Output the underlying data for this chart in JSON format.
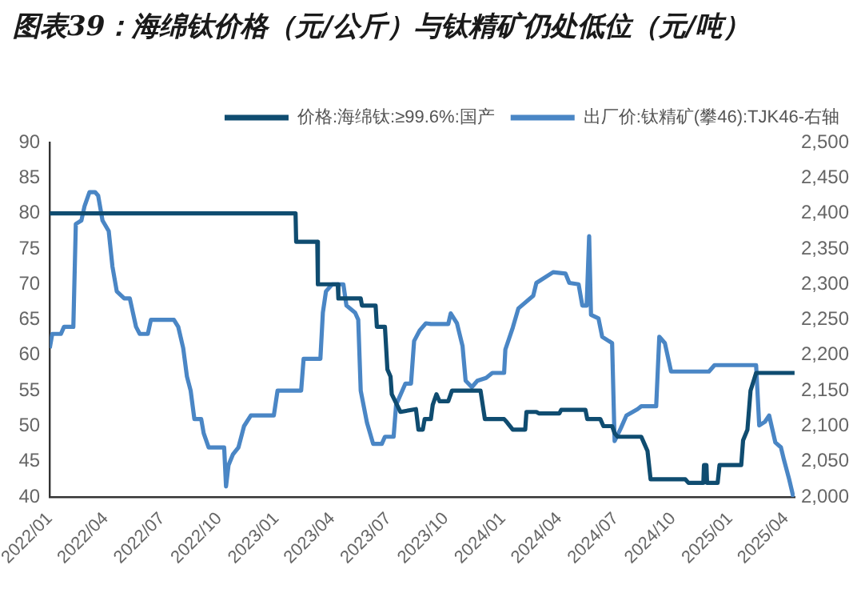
{
  "chart_data": {
    "type": "line",
    "title": "图表39：海绵钛价格（元/公斤）与钛精矿仍处低位（元/吨）",
    "xlim": [
      "2022-01-01",
      "2025-04-15"
    ],
    "xticks": [
      {
        "value": "2022-01-01",
        "label": "2022/01"
      },
      {
        "value": "2022-04-01",
        "label": "2022/04"
      },
      {
        "value": "2022-07-01",
        "label": "2022/07"
      },
      {
        "value": "2022-10-01",
        "label": "2022/10"
      },
      {
        "value": "2023-01-01",
        "label": "2023/01"
      },
      {
        "value": "2023-04-01",
        "label": "2023/04"
      },
      {
        "value": "2023-07-01",
        "label": "2023/07"
      },
      {
        "value": "2023-10-01",
        "label": "2023/10"
      },
      {
        "value": "2024-01-01",
        "label": "2024/01"
      },
      {
        "value": "2024-04-01",
        "label": "2024/04"
      },
      {
        "value": "2024-07-01",
        "label": "2024/07"
      },
      {
        "value": "2024-10-01",
        "label": "2024/10"
      },
      {
        "value": "2025-01-01",
        "label": "2025/01"
      },
      {
        "value": "2025-04-01",
        "label": "2025/04"
      }
    ],
    "ylim": [
      40,
      90
    ],
    "yticks": [
      40,
      45,
      50,
      55,
      60,
      65,
      70,
      75,
      80,
      85,
      90
    ],
    "y2lim": [
      2000,
      2500
    ],
    "y2ticks": [
      {
        "value": 2000,
        "label": "2,000"
      },
      {
        "value": 2050,
        "label": "2,050"
      },
      {
        "value": 2100,
        "label": "2,100"
      },
      {
        "value": 2150,
        "label": "2,150"
      },
      {
        "value": 2200,
        "label": "2,200"
      },
      {
        "value": 2250,
        "label": "2,250"
      },
      {
        "value": 2300,
        "label": "2,300"
      },
      {
        "value": 2350,
        "label": "2,350"
      },
      {
        "value": 2400,
        "label": "2,400"
      },
      {
        "value": 2450,
        "label": "2,450"
      },
      {
        "value": 2500,
        "label": "2,500"
      }
    ],
    "grid": false,
    "legend": "top",
    "marker": "none",
    "line_style": "solid",
    "series": [
      {
        "name": "价格:海绵钛:≥99.6%:国产",
        "color": "#0f4c70",
        "x": [
          "2022-01-01",
          "2023-02-01",
          "2023-02-02",
          "2023-03-08",
          "2023-03-09",
          "2023-04-10",
          "2023-04-11",
          "2023-05-17",
          "2023-05-19",
          "2023-06-10",
          "2023-06-12",
          "2023-06-25",
          "2023-06-29",
          "2023-07-04",
          "2023-07-06",
          "2023-07-20",
          "2023-08-14",
          "2023-08-18",
          "2023-08-25",
          "2023-08-28",
          "2023-09-07",
          "2023-09-10",
          "2023-09-16",
          "2023-09-21",
          "2023-10-05",
          "2023-10-11",
          "2023-11-26",
          "2023-12-03",
          "2024-01-03",
          "2024-01-08",
          "2024-01-17",
          "2024-02-06",
          "2024-02-08",
          "2024-02-24",
          "2024-02-28",
          "2024-04-01",
          "2024-04-04",
          "2024-05-13",
          "2024-05-16",
          "2024-06-06",
          "2024-06-11",
          "2024-06-25",
          "2024-06-29",
          "2024-07-04",
          "2024-08-11",
          "2024-08-16",
          "2024-08-21",
          "2024-08-26",
          "2024-10-21",
          "2024-10-26",
          "2024-11-19",
          "2024-11-20",
          "2024-11-24",
          "2024-11-25",
          "2024-12-12",
          "2024-12-15",
          "2025-01-19",
          "2025-01-22",
          "2025-01-29",
          "2025-02-03",
          "2025-02-12",
          "2025-04-15"
        ],
        "values": [
          80,
          80,
          76,
          76,
          70,
          70,
          68,
          68,
          67,
          67,
          64,
          64,
          58,
          57,
          54.5,
          52,
          52.4,
          49.5,
          49.5,
          51,
          51,
          53,
          54.5,
          53.5,
          53.5,
          55,
          55,
          51,
          51,
          50.5,
          49.5,
          49.5,
          52,
          52,
          51.8,
          51.8,
          52.3,
          52.3,
          51,
          51,
          50,
          50,
          49,
          48.5,
          48.5,
          47.5,
          46.5,
          42.5,
          42.5,
          42,
          42,
          44.5,
          44.5,
          42,
          42,
          44.5,
          44.5,
          48,
          49.5,
          55,
          57.5,
          57.5
        ]
      },
      {
        "name": "出厂价:钛精矿(攀46):TJK46-右轴",
        "color": "#4a86c5",
        "axis": "y2",
        "x": [
          "2022-01-01",
          "2022-01-05",
          "2022-01-19",
          "2022-01-24",
          "2022-02-08",
          "2022-02-12",
          "2022-02-21",
          "2022-02-26",
          "2022-03-06",
          "2022-03-15",
          "2022-03-20",
          "2022-03-27",
          "2022-04-06",
          "2022-04-12",
          "2022-04-19",
          "2022-05-01",
          "2022-05-10",
          "2022-05-15",
          "2022-05-20",
          "2022-05-26",
          "2022-06-08",
          "2022-06-13",
          "2022-07-20",
          "2022-07-27",
          "2022-08-04",
          "2022-08-10",
          "2022-08-16",
          "2022-08-22",
          "2022-09-02",
          "2022-09-06",
          "2022-09-14",
          "2022-10-09",
          "2022-10-12",
          "2022-10-16",
          "2022-10-23",
          "2022-11-01",
          "2022-11-10",
          "2022-11-21",
          "2022-12-28",
          "2023-01-03",
          "2023-02-10",
          "2023-02-14",
          "2023-03-13",
          "2023-03-17",
          "2023-03-22",
          "2023-04-01",
          "2023-04-19",
          "2023-04-24",
          "2023-05-08",
          "2023-05-13",
          "2023-05-17",
          "2023-05-27",
          "2023-06-06",
          "2023-06-20",
          "2023-06-25",
          "2023-07-09",
          "2023-07-13",
          "2023-07-28",
          "2023-08-06",
          "2023-08-11",
          "2023-08-20",
          "2023-08-30",
          "2023-09-07",
          "2023-10-05",
          "2023-10-09",
          "2023-10-19",
          "2023-10-28",
          "2023-11-02",
          "2023-11-12",
          "2023-11-21",
          "2023-12-05",
          "2023-12-15",
          "2024-01-03",
          "2024-01-05",
          "2024-01-17",
          "2024-01-26",
          "2024-02-19",
          "2024-02-24",
          "2024-03-22",
          "2024-04-11",
          "2024-04-17",
          "2024-05-02",
          "2024-05-08",
          "2024-05-15",
          "2024-05-19",
          "2024-05-22",
          "2024-06-03",
          "2024-06-09",
          "2024-06-25",
          "2024-06-29",
          "2024-07-09",
          "2024-07-18",
          "2024-08-05",
          "2024-08-11",
          "2024-09-04",
          "2024-09-09",
          "2024-09-18",
          "2024-09-28",
          "2024-11-28",
          "2024-12-07",
          "2025-02-12",
          "2025-02-17",
          "2025-02-26",
          "2025-03-05",
          "2025-03-15",
          "2025-03-24",
          "2025-03-29",
          "2025-04-06",
          "2025-04-13"
        ],
        "values": [
          2210,
          2230,
          2230,
          2240,
          2240,
          2385,
          2390,
          2410,
          2430,
          2430,
          2425,
          2390,
          2375,
          2325,
          2290,
          2280,
          2280,
          2260,
          2240,
          2230,
          2230,
          2250,
          2250,
          2240,
          2210,
          2170,
          2150,
          2110,
          2110,
          2090,
          2070,
          2070,
          2015,
          2045,
          2060,
          2070,
          2100,
          2115,
          2115,
          2150,
          2150,
          2195,
          2195,
          2260,
          2290,
          2300,
          2300,
          2270,
          2260,
          2250,
          2150,
          2105,
          2075,
          2075,
          2085,
          2085,
          2130,
          2160,
          2160,
          2220,
          2235,
          2245,
          2244,
          2244,
          2259,
          2245,
          2213,
          2164,
          2155,
          2164,
          2168,
          2175,
          2175,
          2208,
          2239,
          2266,
          2284,
          2302,
          2317,
          2315,
          2302,
          2300,
          2270,
          2270,
          2368,
          2257,
          2252,
          2226,
          2217,
          2079,
          2097,
          2115,
          2124,
          2128,
          2128,
          2226,
          2217,
          2177,
          2177,
          2186,
          2186,
          2101,
          2106,
          2115,
          2077,
          2070,
          2052,
          2026,
          2000
        ]
      }
    ]
  }
}
